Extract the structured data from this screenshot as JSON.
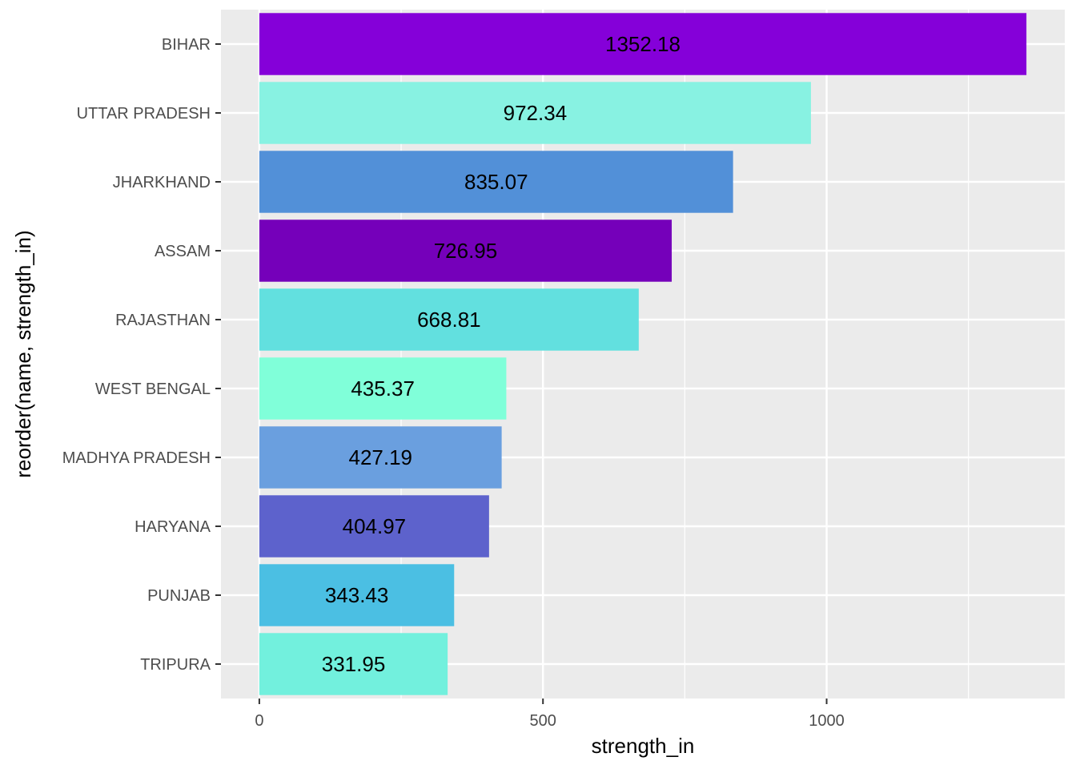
{
  "chart_data": {
    "type": "bar",
    "orientation": "horizontal",
    "categories": [
      "BIHAR",
      "UTTAR PRADESH",
      "JHARKHAND",
      "ASSAM",
      "RAJASTHAN",
      "WEST BENGAL",
      "MADHYA PRADESH",
      "HARYANA",
      "PUNJAB",
      "TRIPURA"
    ],
    "values": [
      1352.18,
      972.34,
      835.07,
      726.95,
      668.81,
      435.37,
      427.19,
      404.97,
      343.43,
      331.95
    ],
    "value_labels": [
      "1352.18",
      "972.34",
      "835.07",
      "726.95",
      "668.81",
      "435.37",
      "427.19",
      "404.97",
      "343.43",
      "331.95"
    ],
    "colors": [
      "#8500d9",
      "#88f2e2",
      "#5290d8",
      "#7500ba",
      "#62e0df",
      "#80ffd9",
      "#6a9fdf",
      "#5d62cc",
      "#4bbfe3",
      "#72f0dd"
    ],
    "xlabel": "strength_in",
    "ylabel": "reorder(name, strength_in)",
    "xlim": [
      -67.6,
      1419.8
    ],
    "xticks": [
      0,
      500,
      1000
    ],
    "xtick_labels": [
      "0",
      "500",
      "1000"
    ],
    "grid": true,
    "panel_background": "#ebebeb",
    "grid_color": "#ffffff"
  }
}
